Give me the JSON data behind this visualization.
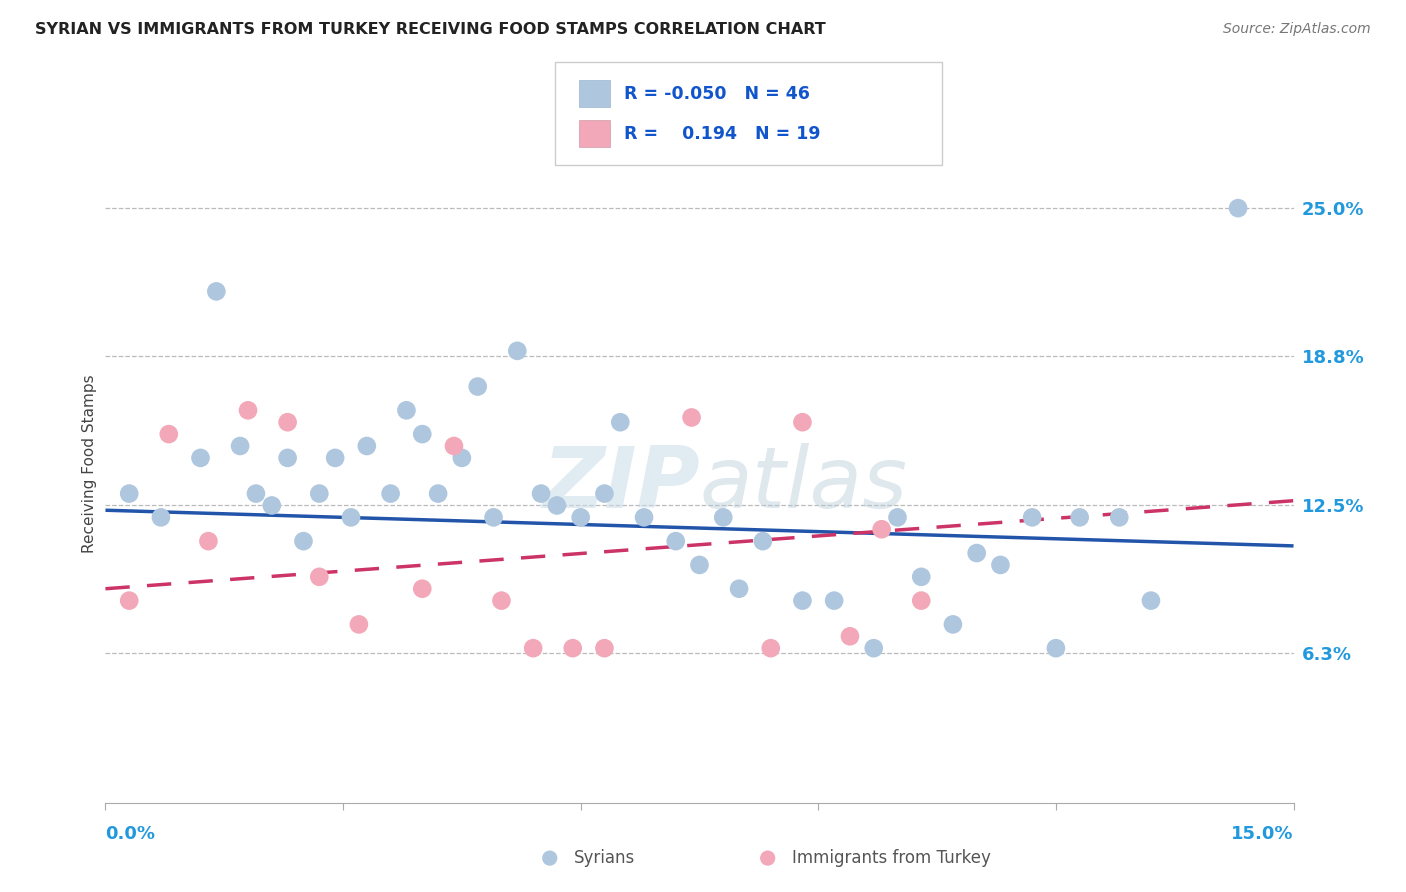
{
  "title": "SYRIAN VS IMMIGRANTS FROM TURKEY RECEIVING FOOD STAMPS CORRELATION CHART",
  "source": "Source: ZipAtlas.com",
  "ylabel": "Receiving Food Stamps",
  "ytick_labels": [
    "25.0%",
    "18.8%",
    "12.5%",
    "6.3%"
  ],
  "ytick_values": [
    0.25,
    0.188,
    0.125,
    0.063
  ],
  "xmin": 0.0,
  "xmax": 0.15,
  "ymin": 0.0,
  "ymax": 0.285,
  "watermark_zip": "ZIP",
  "watermark_atlas": "atlas",
  "legend_blue_r": "-0.050",
  "legend_blue_n": "46",
  "legend_pink_r": "0.194",
  "legend_pink_n": "19",
  "blue_scatter_color": "#aec6de",
  "pink_scatter_color": "#f2a8b8",
  "line_blue_color": "#2255aa",
  "line_pink_color": "#cc3366",
  "blue_line_y0": 0.123,
  "blue_line_y1": 0.108,
  "pink_line_y0": 0.09,
  "pink_line_y1": 0.127,
  "syrians_x": [
    0.003,
    0.007,
    0.012,
    0.014,
    0.017,
    0.019,
    0.021,
    0.023,
    0.025,
    0.027,
    0.029,
    0.031,
    0.033,
    0.036,
    0.038,
    0.04,
    0.042,
    0.045,
    0.047,
    0.049,
    0.052,
    0.055,
    0.057,
    0.06,
    0.063,
    0.065,
    0.068,
    0.072,
    0.075,
    0.078,
    0.08,
    0.083,
    0.088,
    0.092,
    0.097,
    0.1,
    0.103,
    0.107,
    0.11,
    0.113,
    0.117,
    0.12,
    0.123,
    0.128,
    0.132,
    0.143
  ],
  "syrians_y": [
    0.13,
    0.12,
    0.145,
    0.215,
    0.15,
    0.13,
    0.125,
    0.145,
    0.11,
    0.13,
    0.145,
    0.12,
    0.15,
    0.13,
    0.165,
    0.155,
    0.13,
    0.145,
    0.175,
    0.12,
    0.19,
    0.13,
    0.125,
    0.12,
    0.13,
    0.16,
    0.12,
    0.11,
    0.1,
    0.12,
    0.09,
    0.11,
    0.085,
    0.085,
    0.065,
    0.12,
    0.095,
    0.075,
    0.105,
    0.1,
    0.12,
    0.065,
    0.12,
    0.12,
    0.085,
    0.25
  ],
  "turkey_x": [
    0.003,
    0.008,
    0.013,
    0.018,
    0.023,
    0.027,
    0.032,
    0.04,
    0.044,
    0.05,
    0.054,
    0.059,
    0.063,
    0.074,
    0.084,
    0.088,
    0.094,
    0.098,
    0.103
  ],
  "turkey_y": [
    0.085,
    0.155,
    0.11,
    0.165,
    0.16,
    0.095,
    0.075,
    0.09,
    0.15,
    0.085,
    0.065,
    0.065,
    0.065,
    0.162,
    0.065,
    0.16,
    0.07,
    0.115,
    0.085
  ]
}
